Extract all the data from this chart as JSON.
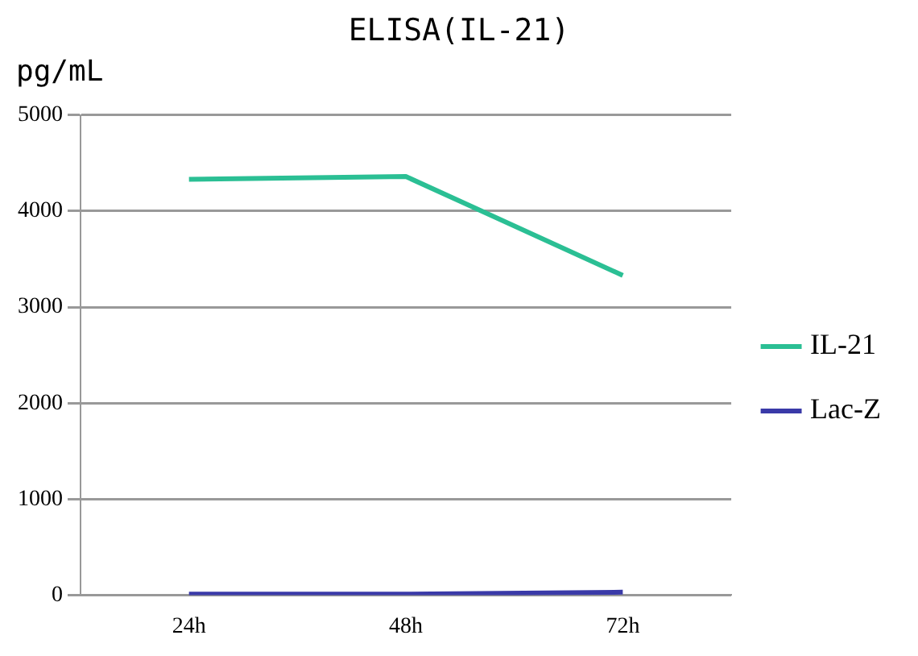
{
  "chart_data": {
    "type": "line",
    "title": "ELISA(IL-21)",
    "ylabel": "pg/mL",
    "categories": [
      "24h",
      "48h",
      "72h"
    ],
    "series": [
      {
        "name": "IL-21",
        "color": "#2bbf94",
        "values": [
          4330,
          4360,
          3330
        ]
      },
      {
        "name": "Lac-Z",
        "color": "#3a3aa8",
        "values": [
          10,
          10,
          30
        ]
      }
    ],
    "ylim": [
      0,
      5000
    ],
    "yticks": [
      0,
      1000,
      2000,
      3000,
      4000,
      5000
    ],
    "grid": "y",
    "legend": "right",
    "marker": "none"
  }
}
